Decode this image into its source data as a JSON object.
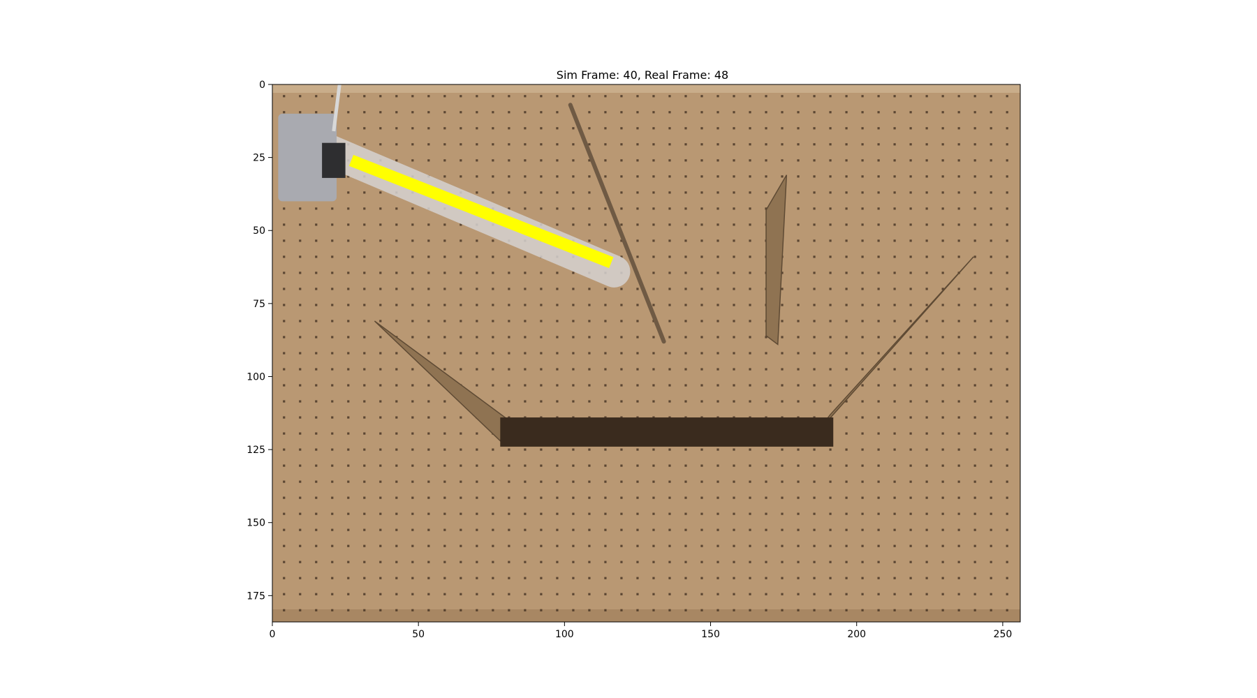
{
  "figure": {
    "title": "Sim Frame: 40, Real Frame: 48"
  },
  "axes": {
    "x": {
      "range": [
        0,
        256
      ],
      "ticks": [
        0,
        50,
        100,
        150,
        200,
        250
      ]
    },
    "y": {
      "range": [
        0,
        184
      ],
      "ticks": [
        0,
        25,
        50,
        75,
        100,
        125,
        150,
        175
      ],
      "inverted": true
    }
  },
  "scene": {
    "board_color": "#b99873",
    "hole_color": "#3b2a1c",
    "hole_spacing": 5.5,
    "ramp_color": "#8f7352",
    "overlay_color": "#ffff00",
    "overlay_segment": {
      "x1": 27,
      "y1": 26,
      "x2": 116,
      "y2": 61
    },
    "tube": {
      "x1": 18,
      "y1": 22,
      "x2": 117,
      "y2": 64,
      "color": "#d6d2d0"
    },
    "mount": {
      "x": 2,
      "y": 10,
      "w": 20,
      "h": 30,
      "color": "#a9aab0"
    },
    "dowel": {
      "x1": 102,
      "y1": 7,
      "x2": 134,
      "y2": 88,
      "color": "#6f5a44"
    },
    "ramps": [
      {
        "points": [
          [
            35,
            81
          ],
          [
            81,
            115
          ],
          [
            78,
            122
          ]
        ]
      },
      {
        "points": [
          [
            176,
            31
          ],
          [
            173,
            89
          ],
          [
            169,
            86
          ],
          [
            169,
            43
          ]
        ]
      },
      {
        "points": [
          [
            240,
            59
          ],
          [
            191,
            113
          ],
          [
            184,
            122
          ]
        ]
      }
    ],
    "trough": {
      "x1": 78,
      "y1": 114,
      "x2": 192,
      "y2": 124,
      "color": "#3a2b1e"
    }
  }
}
